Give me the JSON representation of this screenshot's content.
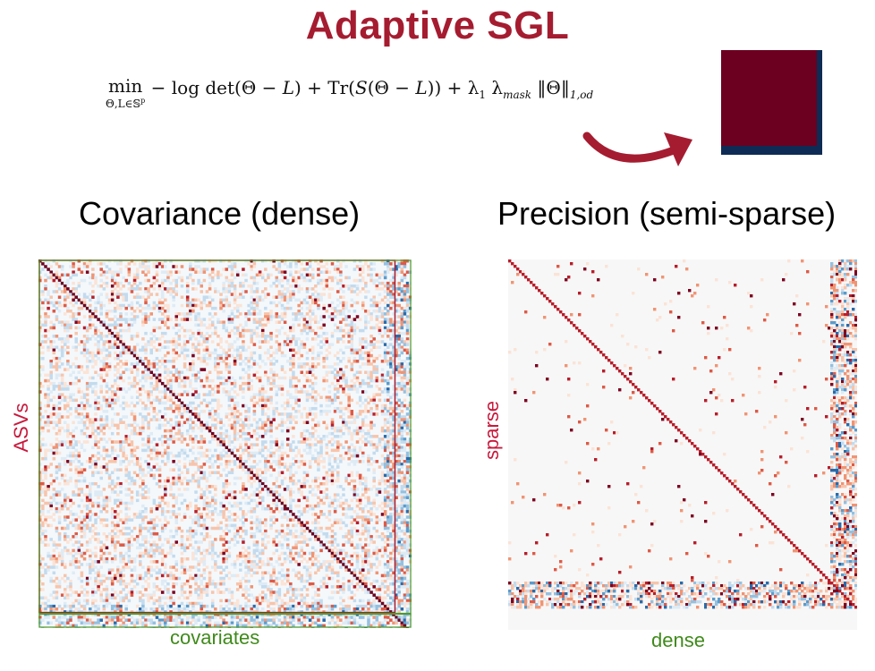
{
  "title": "Adaptive SGL",
  "formula": {
    "operator": "min",
    "operator_subscript": "Θ,L∈𝕊",
    "operator_subscript_sup": "p",
    "term1": "− log det(Θ − ",
    "term1_var": "L",
    "term1_end": ") + Tr(",
    "term2_var": "S",
    "term2": "(Θ − ",
    "term2_var2": "L",
    "term2_end": ")) + λ",
    "lambda_sub": "1",
    "lambda2": " λ",
    "lambda2_sub": "mask",
    "norm": "  ‖Θ‖",
    "norm_sub": "1,od"
  },
  "colors": {
    "title": "#a51c30",
    "mask_dark_red": "#6b0020",
    "mask_navy": "#0d2b55",
    "arrow": "#a51c30",
    "sparse_label": "#c8193c",
    "dense_label": "#3f8a1a",
    "asv_block_border": "#a51c30",
    "covariate_block_border": "#4f9a2a"
  },
  "headings": {
    "covariance": "Covariance (dense)",
    "precision": "Precision (semi-sparse)"
  },
  "axis_labels": {
    "asvs": "ASVs",
    "covariates": "covariates",
    "sparse": "sparse",
    "dense": "dense"
  },
  "chart_data": [
    {
      "type": "heatmap",
      "title": "Covariance (dense)",
      "ylabel": "ASVs",
      "xlabel": "covariates",
      "colormap": "diverging blue-white-red",
      "groups": [
        "ASVs",
        "covariates"
      ]
    },
    {
      "type": "heatmap",
      "title": "Precision (semi-sparse)",
      "ylabel": "sparse",
      "xlabel": "dense",
      "colormap": "diverging blue-white-red",
      "groups": [
        "sparse",
        "dense"
      ]
    }
  ]
}
